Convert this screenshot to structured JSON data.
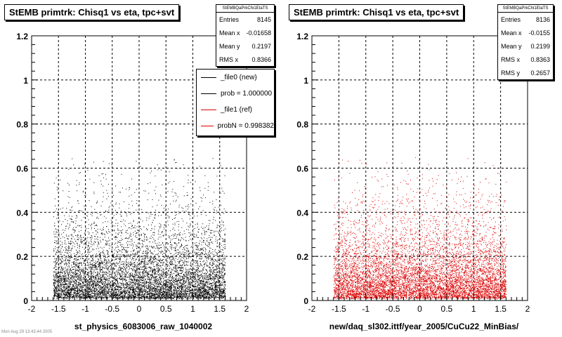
{
  "colors": {
    "new": "#000000",
    "ref": "#dd0000"
  },
  "left": {
    "title": "StEMB primtrk: Chisq1 vs eta, tpc+svt",
    "xlabel": "st_physics_6083006_raw_1040002",
    "stats": {
      "name": "StEMBQaPrkChi1EtaTS",
      "rows": [
        {
          "label": "Entries",
          "value": "8145"
        },
        {
          "label": "Mean x",
          "value": "-0.01658"
        },
        {
          "label": "Mean y",
          "value": "0.2197"
        },
        {
          "label": "RMS x",
          "value": "0.8366"
        }
      ]
    },
    "legend": [
      {
        "label": "_file0 (new)",
        "color": "#000000"
      },
      {
        "label": "prob = 1.000000",
        "color": "#000000"
      },
      {
        "label": "_file1 (ref)",
        "color": "#dd0000"
      },
      {
        "label": "probN = 0.998382",
        "color": "#dd0000"
      }
    ]
  },
  "right": {
    "title": "StEMB primtrk: Chisq1 vs eta, tpc+svt",
    "xlabel": "new/daq_sl302.ittf/year_2005/CuCu22_MinBias/",
    "stats": {
      "name": "StEMBQaPrkChi1EtaTS",
      "rows": [
        {
          "label": "Entries",
          "value": "8136"
        },
        {
          "label": "Mean x",
          "value": "-0.0155"
        },
        {
          "label": "Mean y",
          "value": "0.2199"
        },
        {
          "label": "RMS x",
          "value": "0.8363"
        },
        {
          "label": "RMS y",
          "value": "0.2657"
        }
      ]
    }
  },
  "footer": "Mon Aug 29 13:43:44 2005",
  "chart_data": [
    {
      "type": "scatter",
      "title": "StEMB primtrk: Chisq1 vs eta, tpc+svt",
      "xlabel": "st_physics_6083006_raw_1040002",
      "ylabel": "",
      "xlim": [
        -2,
        2
      ],
      "ylim": [
        0,
        1.2
      ],
      "xticks": [
        "-2",
        "-1.5",
        "-1",
        "-0.5",
        "0",
        "0.5",
        "1",
        "1.5",
        "2"
      ],
      "yticks": [
        "0",
        "0.2",
        "0.4",
        "0.6",
        "0.8",
        "1",
        "1.2"
      ],
      "grid": true,
      "series": [
        {
          "name": "_file0 (new)",
          "entries": 8145,
          "mean_x": -0.01658,
          "mean_y": 0.2197,
          "rms_x": 0.8366,
          "eta_range": [
            -1.6,
            1.6
          ]
        }
      ]
    },
    {
      "type": "scatter",
      "title": "StEMB primtrk: Chisq1 vs eta, tpc+svt",
      "xlabel": "new/daq_sl302.ittf/year_2005/CuCu22_MinBias/",
      "ylabel": "",
      "xlim": [
        -2,
        2
      ],
      "ylim": [
        0,
        1.2
      ],
      "xticks": [
        "-2",
        "-1.5",
        "-1",
        "-0.5",
        "0",
        "0.5",
        "1",
        "1.5",
        "2"
      ],
      "yticks": [
        "0",
        "0.2",
        "0.4",
        "0.6",
        "0.8",
        "1",
        "1.2"
      ],
      "grid": true,
      "series": [
        {
          "name": "_file1 (ref)",
          "entries": 8136,
          "mean_x": -0.0155,
          "mean_y": 0.2199,
          "rms_x": 0.8363,
          "rms_y": 0.2657,
          "eta_range": [
            -1.6,
            1.6
          ]
        }
      ]
    }
  ]
}
